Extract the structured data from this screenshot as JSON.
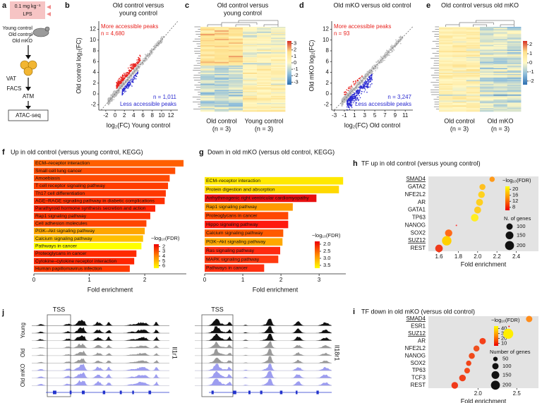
{
  "panel_labels": [
    "a",
    "b",
    "c",
    "d",
    "e",
    "f",
    "g",
    "h",
    "i",
    "j"
  ],
  "schematic": {
    "dose": "0.1 mg kg⁻¹",
    "treatment": "LPS",
    "groups": [
      "Young control",
      "Old control",
      "Old mKO"
    ],
    "steps": [
      "VAT",
      "FACS",
      "ATM",
      "ATAC-seq"
    ]
  },
  "chart_data": [
    {
      "type": "scatter",
      "title": [
        "Old control versus",
        "young control"
      ],
      "xlabel": "log₂(FC) Young control",
      "ylabel": "Old control log₂(FC)",
      "xlim": [
        -3.5,
        13.5
      ],
      "ylim": [
        -3,
        13.5
      ],
      "xticks": [
        -2,
        0,
        2,
        4,
        6,
        8,
        10,
        12
      ],
      "yticks": [
        -2,
        0,
        2,
        4,
        6,
        8,
        10,
        12
      ],
      "annotations": {
        "up": [
          "More accessible peaks",
          "n = 4,680"
        ],
        "down": [
          "n = 1,011",
          "Less accessible peaks"
        ]
      },
      "colors": {
        "up": "#e8231f",
        "down": "#2b2bd0",
        "background": "#b8b8b8"
      }
    },
    {
      "type": "heatmap",
      "title": [
        "Old control versus",
        "young control"
      ],
      "groups": [
        "Old control",
        "Young control"
      ],
      "group_notes": [
        "(n = 3)",
        "(n = 3)"
      ],
      "colorbar": {
        "lim": [
          3.4,
          -3.4
        ],
        "ticks": [
          3,
          2,
          1,
          0,
          -1,
          -2,
          -3
        ],
        "colors": [
          "#d73027",
          "#fee08b",
          "#fff8c4",
          "#91bfdb",
          "#2c6fb0"
        ]
      }
    },
    {
      "type": "scatter",
      "title": [
        "Old mKO versus old control"
      ],
      "xlabel": "log₂(FC) Old control",
      "ylabel": "Old mKO log₂(FC)",
      "xlim": [
        -3.5,
        12.5
      ],
      "ylim": [
        -3,
        13.5
      ],
      "xticks": [
        -3,
        -1,
        1,
        3,
        5,
        7,
        9,
        11
      ],
      "yticks": [
        -2,
        0,
        2,
        4,
        6,
        8,
        10,
        12
      ],
      "annotations": {
        "up": [
          "More accessible peaks",
          "n = 93"
        ],
        "down": [
          "n = 3,247",
          "Less accessible peaks"
        ]
      },
      "colors": {
        "up": "#e8231f",
        "down": "#2b2bd0",
        "background": "#b8b8b8"
      }
    },
    {
      "type": "heatmap",
      "title": [
        "Old control versus old mKO"
      ],
      "groups": [
        "Old control",
        "Old mKO"
      ],
      "group_notes": [
        "(n = 3)",
        "(n = 3)"
      ],
      "colorbar": {
        "lim": [
          2.4,
          -2.4
        ],
        "ticks": [
          2,
          1,
          0,
          -1,
          -2
        ],
        "colors": [
          "#d73027",
          "#fee08b",
          "#fff8c4",
          "#91bfdb",
          "#2c6fb0"
        ]
      }
    },
    {
      "type": "bar",
      "orientation": "horizontal",
      "title": "Up in old control (versus young control, KEGG)",
      "categories": [
        "ECM–receptor interaction",
        "Small cell lung cancer",
        "Amoebiasis",
        "T cell receptor signaling pathway",
        "Th17 cell differentiation",
        "AGE–RAGE signaling pathway in diabetic complications",
        "Parathyroid hormone synthesis secretion and action",
        "Rap1 signaling pathway",
        "Cell adhesion molecules",
        "PI3K–Akt signaling pathway",
        "Calcium signaling pathway",
        "Pathways in cancer",
        "Proteoglycans in cancer",
        "Cytokine–cytokine receptor interaction",
        "Human papillomavirus infection"
      ],
      "values": [
        2.7,
        2.55,
        2.45,
        2.42,
        2.38,
        2.36,
        2.19,
        2.1,
        2.03,
        2.0,
        1.97,
        1.94,
        1.85,
        1.81,
        1.73
      ],
      "colors": [
        "#ff5f00",
        "#ff4d00",
        "#ff4a00",
        "#ff3d00",
        "#ff3800",
        "#ff3000",
        "#ff2400",
        "#ff3500",
        "#ff4500",
        "#ffa500",
        "#ffbf00",
        "#ffff00",
        "#ff2a00",
        "#ff2500",
        "#ff3a00"
      ],
      "xlabel": "Fold enrichment",
      "xlim": [
        0,
        2.75
      ],
      "xticks": [
        0,
        1,
        2
      ],
      "colorbar": {
        "title": "−log₁₀(FDR)",
        "lim": [
          1.5,
          6.5
        ],
        "ticks": [
          2,
          3,
          4,
          5,
          6
        ],
        "colors": [
          "#ee0000",
          "#ff8800",
          "#ffff00"
        ]
      }
    },
    {
      "type": "bar",
      "orientation": "horizontal",
      "title": "Down in old mKO (versus old control, KEGG)",
      "categories": [
        "ECM–receptor interaction",
        "Protein digestion and absorption",
        "Arrhythmogenic right ventricular cardiomyopathy",
        "Rap1 signaling pathway",
        "Proteoglycans in cancer",
        "Hippo signaling pathway",
        "Calcium signaling pathway",
        "PI3K–Akt signaling pathway",
        "Ras signaling pathway",
        "MAPK signaling pathway",
        "Pathways in cancer"
      ],
      "values": [
        3.63,
        3.52,
        2.93,
        2.31,
        2.19,
        2.19,
        2.06,
        2.04,
        1.98,
        1.93,
        1.56
      ],
      "colors": [
        "#ffe800",
        "#ffd800",
        "#e81010",
        "#ff9a00",
        "#ff4800",
        "#ff1a10",
        "#ff5a00",
        "#ffa800",
        "#ff2a10",
        "#ff3a10",
        "#ff3010"
      ],
      "xlabel": "Fold enrichment",
      "xlim": [
        0,
        3.7
      ],
      "xticks": [
        0,
        1,
        2,
        3
      ],
      "colorbar": {
        "title": "−log₁₀(FDR)",
        "lim": [
          1.8,
          3.7
        ],
        "ticks": [
          {
            "value": 2,
            "label": "2.0"
          },
          2.5,
          {
            "value": 3,
            "label": "3.0"
          },
          3.5
        ],
        "colors": [
          "#ee0000",
          "#ff8800",
          "#ffff00"
        ]
      }
    },
    {
      "type": "dot",
      "title": "TF up in old control (versus young control)",
      "categories": [
        "SMAD4",
        "GATA2",
        "NFE2L2",
        "AR",
        "GATA1",
        "TP63",
        "NANOG",
        "SOX2",
        "SUZ12",
        "REST"
      ],
      "underline": [
        true,
        false,
        false,
        false,
        false,
        false,
        false,
        false,
        true,
        false
      ],
      "values": [
        2.15,
        2.05,
        2.04,
        2.02,
        2.0,
        1.97,
        1.78,
        1.7,
        1.68,
        1.6
      ],
      "sizes": [
        70,
        90,
        110,
        120,
        120,
        140,
        5,
        130,
        220,
        140
      ],
      "colors": [
        "#ff9a1a",
        "#ffc020",
        "#ffd21f",
        "#ffd020",
        "#ffcc22",
        "#ffee22",
        "#ff3333",
        "#ff6a1a",
        "#ffd000",
        "#f03a1a"
      ],
      "xlabel": "Fold enrichment",
      "xlim": [
        1.49,
        2.63
      ],
      "xticks": [
        1.6,
        1.8,
        {
          "value": 2,
          "label": "2.0"
        },
        2.2,
        2.4
      ],
      "background": "#e3e3e3",
      "colorbar": {
        "title": "−log₁₀(FDR)",
        "lim": [
          22,
          6
        ],
        "ticks": [
          20,
          16,
          12,
          8
        ],
        "colors": [
          "#ffff00",
          "#ff8800",
          "#ee0000"
        ]
      },
      "size_legend": {
        "title": "N. of genes",
        "values": [
          100,
          150,
          200
        ]
      }
    },
    {
      "type": "dot",
      "title": "TF down in old mKO (versus old control)",
      "categories": [
        "SMAD4",
        "ESR1",
        "SUZ12",
        "AR",
        "NFE2L2",
        "NANOG",
        "SOX2",
        "TP63",
        "TCF3",
        "REST"
      ],
      "underline": [
        true,
        false,
        true,
        false,
        false,
        false,
        false,
        false,
        false,
        false
      ],
      "values": [
        2.66,
        2.4,
        2.39,
        2.06,
        1.98,
        1.92,
        1.88,
        1.86,
        1.8,
        1.7
      ],
      "sizes": [
        100,
        5,
        250,
        100,
        90,
        90,
        70,
        80,
        110,
        110
      ],
      "colors": [
        "#ff8c1a",
        "#ee1111",
        "#ffee00",
        "#f5401a",
        "#f05020",
        "#f04a1a",
        "#f24418",
        "#f54a1a",
        "#f0401a",
        "#f03a1a"
      ],
      "xlabel": "Fold enrichment",
      "xlim": [
        1.36,
        2.78
      ],
      "xticks": [
        {
          "value": 2,
          "label": "2.0"
        },
        2.5
      ],
      "background": "#e3e3e3",
      "colorbar": {
        "title": "−log₁₀(FDR)",
        "lim": [
          45,
          5
        ],
        "ticks": [
          40,
          30,
          20,
          10
        ],
        "colors": [
          "#ffff00",
          "#ff8800",
          "#ee0000"
        ]
      },
      "size_legend": {
        "title": "Number of genes",
        "values": [
          50,
          100,
          150,
          200
        ]
      }
    }
  ],
  "tracks": {
    "tss": "TSS",
    "groups": [
      "Young",
      "Old",
      "Old mKO"
    ],
    "genes": [
      "Il1r1",
      "Il18r1"
    ],
    "colors": [
      "#111111",
      "#9a9a9a",
      "#9d9df0"
    ],
    "gene_color": "#2233cc"
  }
}
